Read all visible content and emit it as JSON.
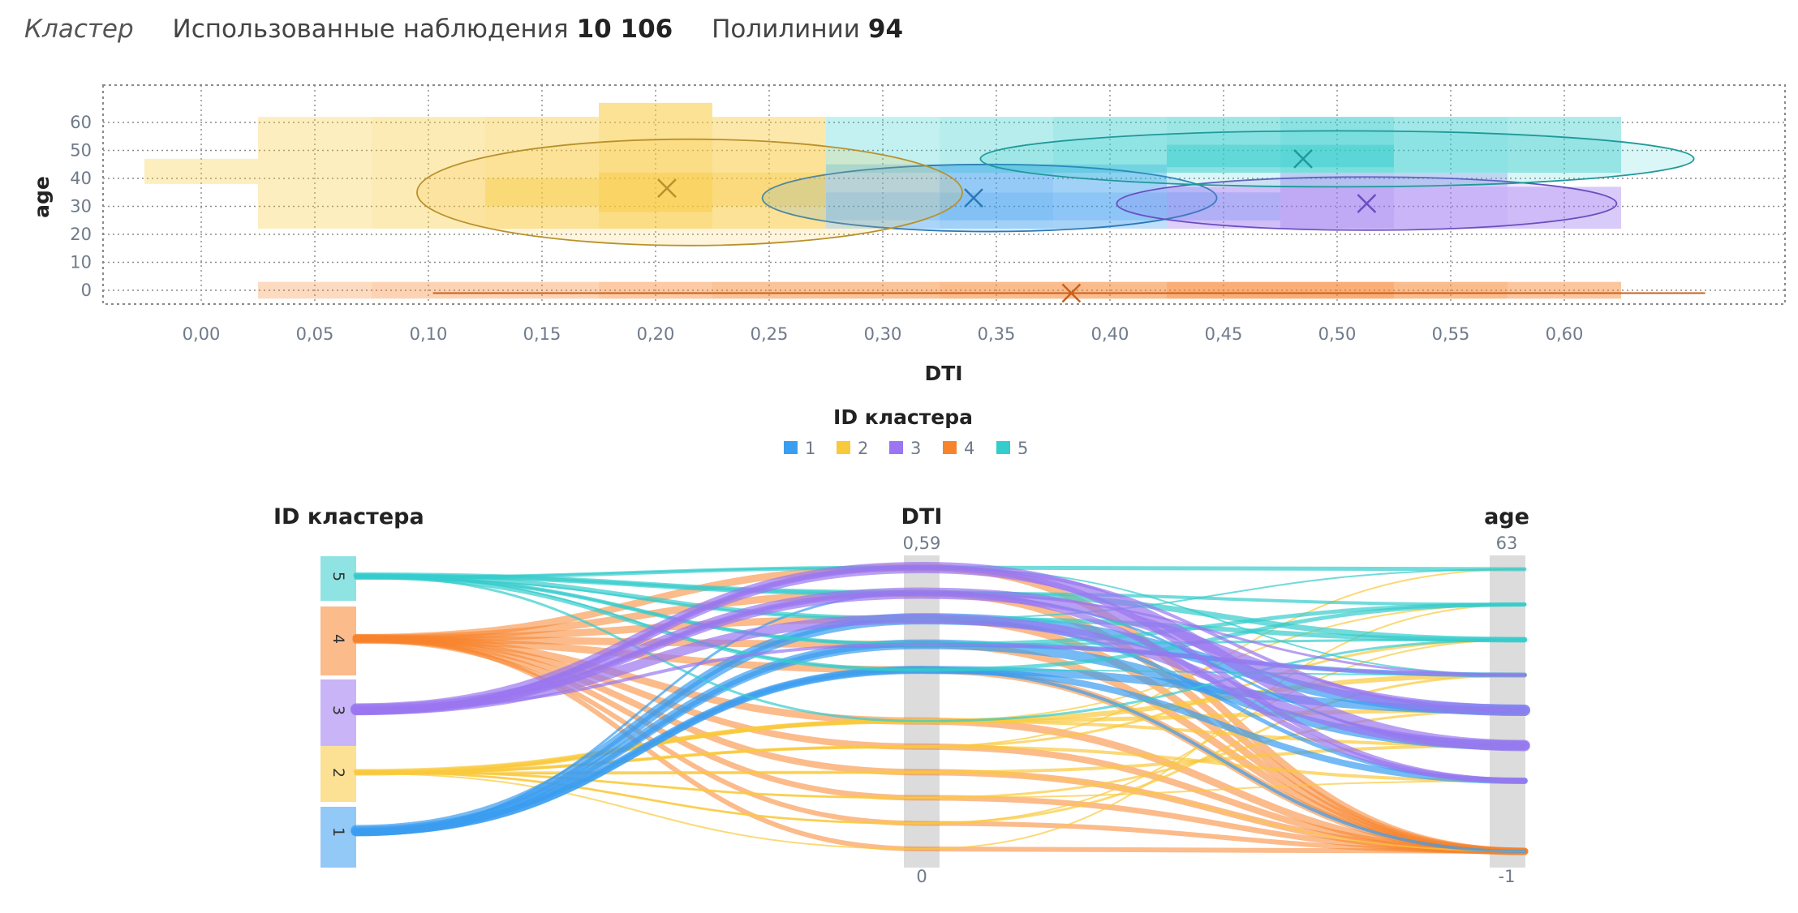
{
  "header": {
    "title": "Кластер",
    "obs_label": "Использованные наблюдения",
    "obs_value": "10 106",
    "poly_label": "Полилинии",
    "poly_value": "94"
  },
  "colors": {
    "1": "#3a9df0",
    "2": "#f9c93c",
    "3": "#9a76f0",
    "4": "#f7832c",
    "5": "#34cccc",
    "grid": "#8a8a8a",
    "axis_bar": "#dcdcdc"
  },
  "chart_data": [
    {
      "type": "scatter",
      "subtype": "cluster-density",
      "xlabel": "DTI",
      "ylabel": "age",
      "xlim": [
        -0.03,
        0.69
      ],
      "ylim": [
        -8,
        74
      ],
      "xticks": [
        "0,00",
        "0,05",
        "0,10",
        "0,15",
        "0,20",
        "0,25",
        "0,30",
        "0,35",
        "0,40",
        "0,45",
        "0,50",
        "0,55",
        "0,60"
      ],
      "xtick_values": [
        0,
        0.05,
        0.1,
        0.15,
        0.2,
        0.25,
        0.3,
        0.35,
        0.4,
        0.45,
        0.5,
        0.55,
        0.6
      ],
      "yticks": [
        "0",
        "10",
        "20",
        "30",
        "40",
        "50",
        "60"
      ],
      "ytick_values": [
        0,
        10,
        20,
        30,
        40,
        50,
        60
      ],
      "grid": true,
      "legend_title": "ID кластера",
      "legend_position": "bottom-center",
      "clusters": [
        {
          "id": "1",
          "centroid": [
            0.34,
            33
          ],
          "ellipse": {
            "cx": 0.347,
            "cy": 33,
            "rx": 0.1,
            "ry": 12
          }
        },
        {
          "id": "2",
          "centroid": [
            0.205,
            36.5
          ],
          "ellipse": {
            "cx": 0.215,
            "cy": 35,
            "rx": 0.12,
            "ry": 19
          }
        },
        {
          "id": "3",
          "centroid": [
            0.513,
            31
          ],
          "ellipse": {
            "cx": 0.513,
            "cy": 31,
            "rx": 0.11,
            "ry": 9.5
          }
        },
        {
          "id": "4",
          "centroid": [
            0.383,
            -1
          ],
          "ellipse": {
            "cx": 0.382,
            "cy": -1,
            "rx": 0.28,
            "ry": 0.8
          }
        },
        {
          "id": "5",
          "centroid": [
            0.485,
            47
          ],
          "ellipse": {
            "cx": 0.5,
            "cy": 47,
            "rx": 0.157,
            "ry": 10
          }
        }
      ],
      "density_cells": {
        "1": [
          [
            0.275,
            0.325,
            25,
            35,
            0.55
          ],
          [
            0.325,
            0.375,
            25,
            35,
            0.75
          ],
          [
            0.375,
            0.425,
            25,
            35,
            0.65
          ],
          [
            0.425,
            0.475,
            25,
            35,
            0.3
          ],
          [
            0.275,
            0.325,
            35,
            45,
            0.3
          ],
          [
            0.325,
            0.375,
            35,
            45,
            0.55
          ],
          [
            0.375,
            0.425,
            35,
            45,
            0.4
          ],
          [
            0.275,
            0.325,
            22,
            25,
            0.3
          ],
          [
            0.325,
            0.375,
            22,
            25,
            0.4
          ],
          [
            0.375,
            0.425,
            22,
            25,
            0.35
          ]
        ],
        "2": [
          [
            -0.025,
            0.025,
            38,
            47,
            0.35
          ],
          [
            0.025,
            0.075,
            22,
            62,
            0.35
          ],
          [
            0.075,
            0.125,
            22,
            62,
            0.45
          ],
          [
            0.125,
            0.175,
            22,
            62,
            0.55
          ],
          [
            0.175,
            0.225,
            22,
            67,
            0.75
          ],
          [
            0.225,
            0.275,
            22,
            62,
            0.55
          ],
          [
            0.175,
            0.225,
            28,
            42,
            0.55
          ],
          [
            0.125,
            0.175,
            30,
            40,
            0.4
          ],
          [
            0.225,
            0.275,
            30,
            42,
            0.3
          ]
        ],
        "3": [
          [
            0.425,
            0.475,
            22,
            37,
            0.4
          ],
          [
            0.475,
            0.525,
            22,
            37,
            0.75
          ],
          [
            0.525,
            0.575,
            22,
            37,
            0.55
          ],
          [
            0.575,
            0.625,
            22,
            37,
            0.45
          ],
          [
            0.475,
            0.525,
            37,
            42,
            0.4
          ],
          [
            0.525,
            0.575,
            37,
            42,
            0.3
          ]
        ],
        "4": [
          [
            0.025,
            0.075,
            -3,
            3,
            0.3
          ],
          [
            0.075,
            0.175,
            -3,
            3,
            0.4
          ],
          [
            0.175,
            0.225,
            -3,
            3,
            0.55
          ],
          [
            0.225,
            0.325,
            -3,
            3,
            0.65
          ],
          [
            0.325,
            0.425,
            -3,
            3,
            0.75
          ],
          [
            0.425,
            0.525,
            -3,
            3,
            0.95
          ],
          [
            0.525,
            0.575,
            -3,
            3,
            0.75
          ],
          [
            0.575,
            0.625,
            -3,
            3,
            0.6
          ]
        ],
        "5": [
          [
            0.275,
            0.325,
            42,
            62,
            0.3
          ],
          [
            0.325,
            0.375,
            42,
            62,
            0.4
          ],
          [
            0.375,
            0.425,
            42,
            62,
            0.55
          ],
          [
            0.425,
            0.475,
            42,
            62,
            0.65
          ],
          [
            0.475,
            0.525,
            42,
            62,
            0.8
          ],
          [
            0.525,
            0.575,
            42,
            62,
            0.6
          ],
          [
            0.575,
            0.625,
            42,
            62,
            0.5
          ],
          [
            0.425,
            0.525,
            44,
            52,
            0.55
          ]
        ]
      }
    },
    {
      "type": "line",
      "subtype": "parallel-coordinates",
      "axes": [
        {
          "label": "ID кластера",
          "categories": [
            "5",
            "4",
            "3",
            "2",
            "1"
          ]
        },
        {
          "label": "DTI",
          "max": "0,59",
          "min": "0"
        },
        {
          "label": "age",
          "max": "63",
          "min": "-1"
        }
      ],
      "dti_levels": [
        0.59,
        0.5,
        0.41,
        0.32,
        0.23,
        0.05,
        -0.04,
        -0.13,
        -0.22,
        -0.31,
        -0.4
      ],
      "age_levels": [
        63,
        55,
        47,
        39,
        31,
        23,
        15,
        -1
      ],
      "polylines_count": 94,
      "series": [
        {
          "cluster": "1",
          "flows": [
            [
              2,
              4,
              14
            ],
            [
              3,
              5,
              12
            ],
            [
              4,
              4,
              10
            ],
            [
              4,
              6,
              8
            ],
            [
              3,
              3,
              6
            ],
            [
              2,
              6,
              5
            ],
            [
              4,
              7,
              4
            ],
            [
              1,
              5,
              3
            ]
          ]
        },
        {
          "cluster": "2",
          "flows": [
            [
              5,
              3,
              6
            ],
            [
              5,
              4,
              5
            ],
            [
              6,
              6,
              4
            ],
            [
              7,
              5,
              4
            ],
            [
              5,
              5,
              4
            ],
            [
              8,
              4,
              3
            ],
            [
              9,
              3,
              3
            ],
            [
              6,
              2,
              3
            ],
            [
              10,
              1,
              2
            ],
            [
              7,
              7,
              2
            ],
            [
              8,
              6,
              2
            ],
            [
              9,
              2,
              2
            ],
            [
              5,
              1,
              2
            ],
            [
              6,
              0,
              2
            ]
          ]
        },
        {
          "cluster": "3",
          "flows": [
            [
              0,
              5,
              14
            ],
            [
              1,
              4,
              14
            ],
            [
              2,
              5,
              12
            ],
            [
              0,
              6,
              7
            ],
            [
              1,
              6,
              7
            ],
            [
              3,
              3,
              4
            ],
            [
              0,
              4,
              4
            ],
            [
              1,
              3,
              3
            ]
          ]
        },
        {
          "cluster": "4",
          "flows": [
            [
              0,
              7,
              9
            ],
            [
              1,
              7,
              9
            ],
            [
              2,
              7,
              9
            ],
            [
              3,
              7,
              9
            ],
            [
              4,
              7,
              9
            ],
            [
              5,
              7,
              9
            ],
            [
              6,
              7,
              8
            ],
            [
              7,
              7,
              8
            ],
            [
              8,
              7,
              7
            ],
            [
              9,
              7,
              6
            ],
            [
              10,
              7,
              6
            ]
          ]
        },
        {
          "cluster": "5",
          "flows": [
            [
              1,
              2,
              7
            ],
            [
              2,
              2,
              6
            ],
            [
              3,
              1,
              5
            ],
            [
              4,
              1,
              5
            ],
            [
              0,
              0,
              5
            ],
            [
              1,
              1,
              4
            ],
            [
              5,
              2,
              3
            ],
            [
              3,
              2,
              3
            ],
            [
              0,
              3,
              2
            ],
            [
              2,
              0,
              2
            ],
            [
              4,
              3,
              2
            ]
          ]
        }
      ]
    }
  ]
}
